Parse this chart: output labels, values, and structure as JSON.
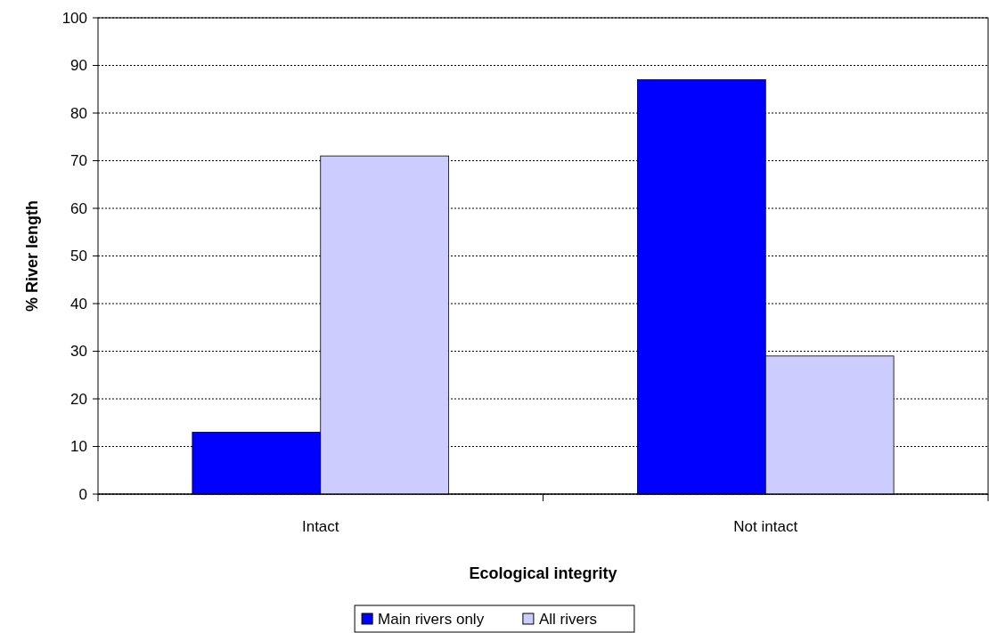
{
  "chart_data": {
    "type": "bar",
    "xlabel": "Ecological integrity",
    "ylabel": "% River length",
    "categories": [
      "Intact",
      "Not intact"
    ],
    "series": [
      {
        "name": "Main rivers only",
        "color": "#0000ff",
        "values": [
          13,
          87
        ]
      },
      {
        "name": "All rivers",
        "color": "#ccccff",
        "values": [
          71,
          29
        ]
      }
    ],
    "ylim": [
      0,
      100
    ],
    "yticks": [
      0,
      10,
      20,
      30,
      40,
      50,
      60,
      70,
      80,
      90,
      100
    ],
    "grid": "y",
    "legend": "bottom"
  }
}
